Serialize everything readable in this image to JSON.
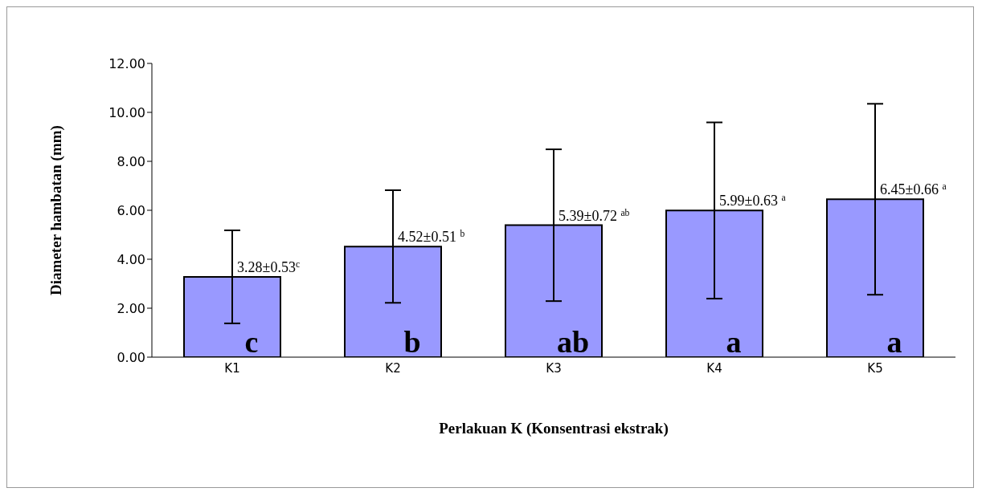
{
  "chart_data": {
    "type": "bar",
    "xlabel": "Perlakuan K (Konsentrasi ekstrak)",
    "ylabel": "Diameter hambatan (mm)",
    "categories": [
      "K1",
      "K2",
      "K3",
      "K4",
      "K5"
    ],
    "values": [
      3.28,
      4.52,
      5.39,
      5.99,
      6.45
    ],
    "errors": [
      1.9,
      2.3,
      3.1,
      3.6,
      3.9
    ],
    "color": "#9999ff",
    "value_labels": [
      "3.28±0.53$^{c}$",
      "4.52±0.51 $^{b}$",
      "5.39±0.72 $^{ab}$",
      "5.99±0.63 $^{a}$",
      "6.45±0.66 $^{a}$"
    ],
    "annotations": [
      "c",
      "b",
      "ab",
      "a",
      "a"
    ],
    "ylim": [
      0,
      12
    ],
    "yticks": [
      {
        "value": 0,
        "label": "0.00"
      },
      {
        "value": 2,
        "label": "2.00"
      },
      {
        "value": 4,
        "label": "4.00"
      },
      {
        "value": 6,
        "label": "6.00"
      },
      {
        "value": 8,
        "label": "8.00"
      },
      {
        "value": 10,
        "label": "10.00"
      },
      {
        "value": 12,
        "label": "12.00"
      }
    ],
    "grid": false,
    "legend": false
  }
}
